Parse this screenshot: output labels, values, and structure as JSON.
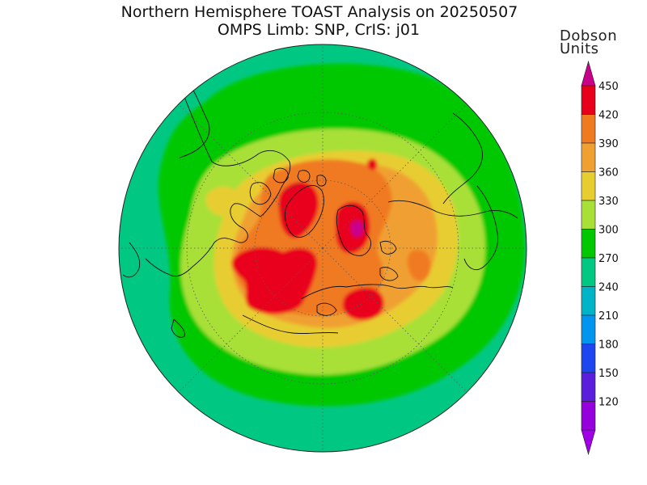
{
  "title": {
    "line1": "Northern Hemisphere TOAST Analysis on 20250507",
    "line2": "OMPS Limb: SNP, CrIS: j01"
  },
  "colorbar": {
    "unit_line1": "Dobson",
    "unit_line2": "Units",
    "levels": [
      {
        "label": "450",
        "color": "#e8001a"
      },
      {
        "label": "420",
        "color": "#f07a20"
      },
      {
        "label": "390",
        "color": "#f0a030"
      },
      {
        "label": "360",
        "color": "#e8cd30"
      },
      {
        "label": "330",
        "color": "#a8e038"
      },
      {
        "label": "300",
        "color": "#00c800"
      },
      {
        "label": "270",
        "color": "#00c882"
      },
      {
        "label": "240",
        "color": "#00b4c8"
      },
      {
        "label": "210",
        "color": "#0096f0"
      },
      {
        "label": "180",
        "color": "#1e46f0"
      },
      {
        "label": "150",
        "color": "#5a1edc"
      },
      {
        "label": "120",
        "color": "#9600dc"
      }
    ],
    "top_cap_color": "#c8008c",
    "bottom_cap_color": "#a000e6"
  },
  "map": {
    "projection": "north-polar-stereographic",
    "colors": {
      "outer_240": "#00c882",
      "band_270": "#00c800",
      "band_300": "#a8e038",
      "band_330": "#e8cd30",
      "band_360": "#f0a030",
      "band_390": "#f07a20",
      "band_420": "#e8001a",
      "max_450": "#c8008c"
    }
  }
}
